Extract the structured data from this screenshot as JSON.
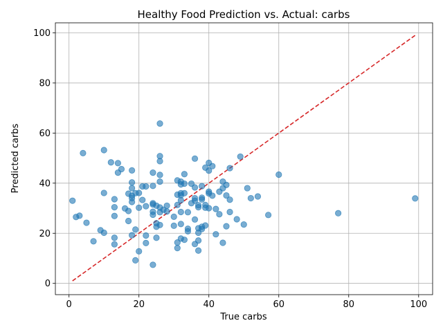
{
  "chart_data": {
    "type": "scatter",
    "title": "Healthy Food Prediction vs. Actual: carbs",
    "xlabel": "True carbs",
    "ylabel": "Predicted carbs",
    "xlim": [
      -3.9,
      104
    ],
    "ylim": [
      -4.5,
      104
    ],
    "xticks": [
      0,
      20,
      40,
      60,
      80,
      100
    ],
    "yticks": [
      0,
      20,
      40,
      60,
      80,
      100
    ],
    "grid": true,
    "point_color": "#1f77b4",
    "reference_line": {
      "x": [
        1,
        99
      ],
      "y": [
        1,
        99
      ],
      "color": "#d62728",
      "style": "dashed"
    },
    "points": [
      [
        1,
        33
      ],
      [
        2,
        26.5
      ],
      [
        3,
        27
      ],
      [
        4,
        52
      ],
      [
        5,
        24.2
      ],
      [
        7,
        16.8
      ],
      [
        9,
        21.2
      ],
      [
        10,
        53.2
      ],
      [
        10,
        36.1
      ],
      [
        10,
        20.2
      ],
      [
        12,
        48.3
      ],
      [
        13,
        33.6
      ],
      [
        13,
        30.4
      ],
      [
        13,
        26.9
      ],
      [
        13,
        18.2
      ],
      [
        13,
        15.6
      ],
      [
        14,
        48
      ],
      [
        14,
        44.2
      ],
      [
        15,
        45.6
      ],
      [
        16,
        29.9
      ],
      [
        17,
        35.8
      ],
      [
        17,
        28.9
      ],
      [
        17,
        24.9
      ],
      [
        18,
        45.1
      ],
      [
        18,
        40.3
      ],
      [
        18,
        38
      ],
      [
        18,
        35
      ],
      [
        18,
        34
      ],
      [
        18,
        32.5
      ],
      [
        18,
        19.2
      ],
      [
        19,
        36
      ],
      [
        19,
        21.5
      ],
      [
        19,
        9.2
      ],
      [
        20,
        36.1
      ],
      [
        20,
        30.2
      ],
      [
        20,
        12.8
      ],
      [
        21,
        38.7
      ],
      [
        21,
        33.3
      ],
      [
        22,
        38.7
      ],
      [
        22,
        30.8
      ],
      [
        22,
        19.1
      ],
      [
        22,
        16.1
      ],
      [
        24,
        44.2
      ],
      [
        24,
        38.9
      ],
      [
        24,
        32
      ],
      [
        24,
        31.5
      ],
      [
        24,
        28.6
      ],
      [
        24,
        27.4
      ],
      [
        24,
        7.4
      ],
      [
        25,
        31
      ],
      [
        25,
        24
      ],
      [
        25,
        22.6
      ],
      [
        25,
        18.2
      ],
      [
        26,
        63.8
      ],
      [
        26,
        50.8
      ],
      [
        26,
        48.8
      ],
      [
        26,
        43.3
      ],
      [
        26,
        40.6
      ],
      [
        26,
        30.3
      ],
      [
        26,
        28.4
      ],
      [
        26,
        23.3
      ],
      [
        27,
        29.4
      ],
      [
        28,
        31
      ],
      [
        28,
        28.7
      ],
      [
        30,
        26.6
      ],
      [
        30,
        23
      ],
      [
        31,
        41.1
      ],
      [
        31,
        35.4
      ],
      [
        31,
        31.3
      ],
      [
        31,
        16.3
      ],
      [
        31,
        14.1
      ],
      [
        32,
        40.6
      ],
      [
        32,
        39.5
      ],
      [
        32,
        36
      ],
      [
        32,
        35.2
      ],
      [
        32,
        33.2
      ],
      [
        32,
        28.5
      ],
      [
        32,
        23.7
      ],
      [
        32,
        17.9
      ],
      [
        33,
        43.6
      ],
      [
        33,
        39.8
      ],
      [
        33,
        36
      ],
      [
        33,
        17.4
      ],
      [
        34,
        28.4
      ],
      [
        34,
        21.8
      ],
      [
        34,
        20.8
      ],
      [
        35,
        39.8
      ],
      [
        35,
        32
      ],
      [
        36,
        49.8
      ],
      [
        36,
        38.3
      ],
      [
        36,
        34
      ],
      [
        36,
        33
      ],
      [
        36,
        25.5
      ],
      [
        36,
        15.7
      ],
      [
        37,
        31.2
      ],
      [
        37,
        30.4
      ],
      [
        37,
        22
      ],
      [
        37,
        20.2
      ],
      [
        37,
        17.1
      ],
      [
        37,
        13.1
      ],
      [
        38,
        38.8
      ],
      [
        38,
        34.2
      ],
      [
        38,
        33.5
      ],
      [
        38,
        22.6
      ],
      [
        38,
        21.7
      ],
      [
        39,
        46.2
      ],
      [
        39,
        31.3
      ],
      [
        39,
        30.2
      ],
      [
        39,
        23.1
      ],
      [
        40,
        48.1
      ],
      [
        40,
        45
      ],
      [
        40,
        36.6
      ],
      [
        40,
        35.9
      ],
      [
        40,
        30
      ],
      [
        41,
        46.8
      ],
      [
        41,
        35
      ],
      [
        42,
        29.7
      ],
      [
        42,
        19.6
      ],
      [
        43,
        36.6
      ],
      [
        43,
        27.6
      ],
      [
        44,
        40.6
      ],
      [
        44,
        38
      ],
      [
        44,
        16.2
      ],
      [
        45,
        39.3
      ],
      [
        45,
        35.1
      ],
      [
        45,
        22.8
      ],
      [
        46,
        46
      ],
      [
        46,
        33.4
      ],
      [
        46,
        28.5
      ],
      [
        48,
        25.6
      ],
      [
        49,
        50.6
      ],
      [
        50,
        23.5
      ],
      [
        51,
        38
      ],
      [
        52,
        34
      ],
      [
        54,
        34.7
      ],
      [
        57,
        27.3
      ],
      [
        60,
        43.4
      ],
      [
        77,
        28
      ],
      [
        99,
        33.9
      ]
    ]
  }
}
